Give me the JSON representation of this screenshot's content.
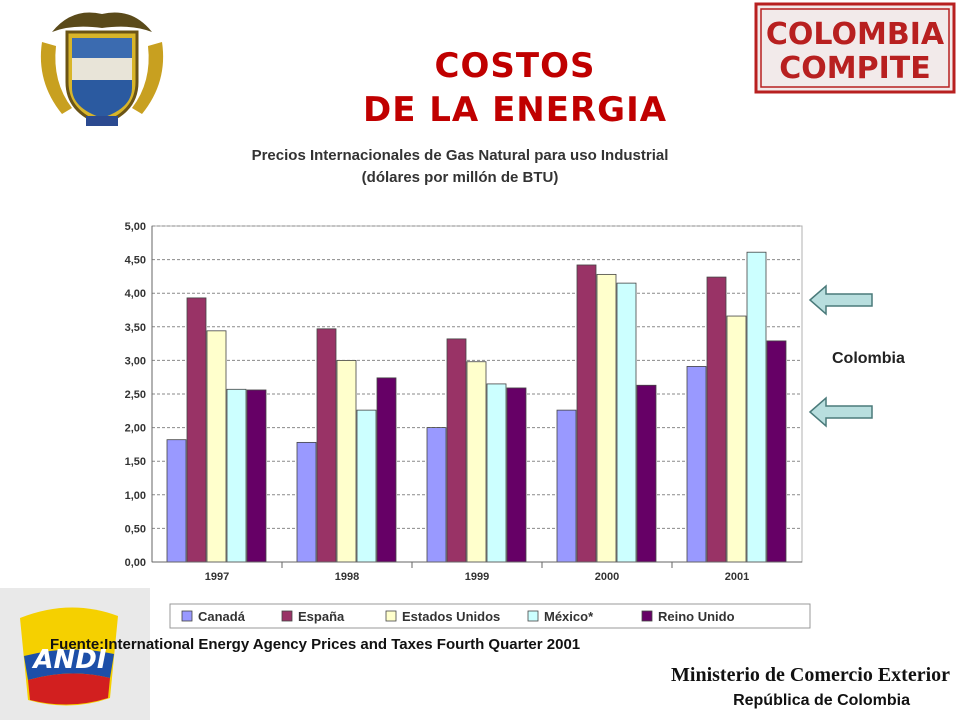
{
  "slide": {
    "title_line1": "COSTOS",
    "title_line2": "DE LA ENERGIA",
    "stamp_line1": "COLOMBIA",
    "stamp_line2": "COMPITE",
    "andi_logo_text": "ANDI",
    "side_label": "Colombia",
    "source": "Fuente:International Energy Agency Prices and Taxes Fourth Quarter 2001",
    "ministry": "Ministerio de Comercio Exterior",
    "republic": "República de Colombia",
    "icons": [
      "coat-of-arms-icon",
      "stamp-logo-icon",
      "andi-logo-icon",
      "arrow-left-icon"
    ]
  },
  "chart_data": {
    "type": "bar",
    "title": "Precios Internacionales de Gas Natural para uso Industrial",
    "subtitle": "(dólares por millón de BTU)",
    "categories": [
      "1997",
      "1998",
      "1999",
      "2000",
      "2001"
    ],
    "series": [
      {
        "name": "Canadá",
        "color": "#9999ff",
        "values": [
          1.82,
          1.78,
          2.0,
          2.26,
          2.91
        ]
      },
      {
        "name": "España",
        "color": "#993366",
        "values": [
          3.93,
          3.47,
          3.32,
          4.42,
          4.24
        ]
      },
      {
        "name": "Estados Unidos",
        "color": "#ffffcc",
        "values": [
          3.44,
          3.0,
          2.98,
          4.28,
          3.66
        ]
      },
      {
        "name": "México*",
        "color": "#ccffff",
        "values": [
          2.57,
          2.26,
          2.65,
          4.15,
          4.61
        ]
      },
      {
        "name": "Reino Unido",
        "color": "#660066",
        "values": [
          2.56,
          2.74,
          2.59,
          2.63,
          3.29
        ]
      }
    ],
    "ylim": [
      0,
      5
    ],
    "yticks": [
      "0,00",
      "0,50",
      "1,00",
      "1,50",
      "2,00",
      "2,50",
      "3,00",
      "3,50",
      "4,00",
      "4,50",
      "5,00"
    ],
    "grid": true,
    "legend": "bottom"
  }
}
